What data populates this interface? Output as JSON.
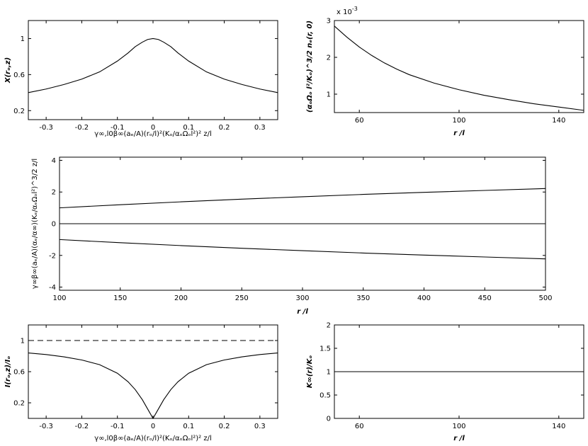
{
  "chart_data": [
    {
      "type": "line",
      "xlim": [
        -0.35,
        0.35
      ],
      "ylim": [
        0.1,
        1.2
      ],
      "xticks": [
        -0.3,
        -0.2,
        -0.1,
        0,
        0.1,
        0.2,
        0.3
      ],
      "xtick_labels": [
        "-0.3",
        "-0.2",
        "-0.1",
        "0",
        "0.1",
        "0.2",
        "0.3"
      ],
      "yticks": [
        0.2,
        0.6,
        1
      ],
      "ytick_labels": [
        "0.2",
        "0.6",
        "1"
      ],
      "xlabel": "γ∞,l0β∞(aₑ/A)(rₒ/l)²(Kₒ/αₒΩₒl²)² z/l",
      "ylabel": "X(rₒ,z)",
      "series": [
        {
          "x": [
            -0.35,
            -0.3,
            -0.25,
            -0.2,
            -0.15,
            -0.1,
            -0.07,
            -0.05,
            -0.03,
            -0.015,
            0,
            0.015,
            0.03,
            0.05,
            0.07,
            0.1,
            0.15,
            0.2,
            0.25,
            0.3,
            0.35
          ],
          "y": [
            0.4,
            0.44,
            0.49,
            0.55,
            0.63,
            0.75,
            0.84,
            0.91,
            0.96,
            0.99,
            1.0,
            0.99,
            0.96,
            0.91,
            0.84,
            0.75,
            0.63,
            0.55,
            0.49,
            0.44,
            0.4
          ]
        }
      ]
    },
    {
      "type": "line",
      "xlim": [
        50,
        150
      ],
      "ylim": [
        0.5,
        3
      ],
      "xticks": [
        60,
        100,
        140
      ],
      "xtick_labels": [
        "60",
        "100",
        "140"
      ],
      "yticks": [
        1,
        2,
        3
      ],
      "ytick_labels": [
        "1",
        "2",
        "3"
      ],
      "offset_text": "x 10",
      "offset_exp": "-3",
      "xlabel": "r /l",
      "ylabel": "(αₒΩₒ l²/Kₒ)^3/2 nₑ(r, 0)",
      "series": [
        {
          "x": [
            50,
            55,
            60,
            65,
            70,
            75,
            80,
            90,
            100,
            110,
            120,
            130,
            140,
            150
          ],
          "y": [
            2.85,
            2.55,
            2.28,
            2.05,
            1.85,
            1.68,
            1.53,
            1.3,
            1.12,
            0.97,
            0.85,
            0.74,
            0.65,
            0.56
          ]
        }
      ]
    },
    {
      "type": "line",
      "xlim": [
        100,
        500
      ],
      "ylim": [
        -4.2,
        4.2
      ],
      "xticks": [
        100,
        150,
        200,
        250,
        300,
        350,
        400,
        450,
        500
      ],
      "xtick_labels": [
        "100",
        "150",
        "200",
        "250",
        "300",
        "350",
        "400",
        "450",
        "500"
      ],
      "yticks": [
        -4,
        -2,
        0,
        2,
        4
      ],
      "ytick_labels": [
        "-4",
        "-2",
        "0",
        "2",
        "4"
      ],
      "xlabel": "r /l",
      "ylabel": "γ∞β∞(aₑ/A)(αₑ/α∞)(Kₑ/αₑΩₒl²)^3/2 z/l",
      "series": [
        {
          "x": [
            100,
            150,
            200,
            250,
            300,
            350,
            400,
            450,
            500
          ],
          "y": [
            1.0,
            1.2,
            1.38,
            1.55,
            1.7,
            1.85,
            1.98,
            2.1,
            2.22
          ]
        },
        {
          "x": [
            100,
            500
          ],
          "y": [
            0,
            0
          ]
        },
        {
          "x": [
            100,
            150,
            200,
            250,
            300,
            350,
            400,
            450,
            500
          ],
          "y": [
            -1.0,
            -1.2,
            -1.38,
            -1.55,
            -1.7,
            -1.85,
            -1.98,
            -2.1,
            -2.22
          ]
        }
      ]
    },
    {
      "type": "line",
      "xlim": [
        -0.35,
        0.35
      ],
      "ylim": [
        0,
        1.2
      ],
      "xticks": [
        -0.3,
        -0.2,
        -0.1,
        0,
        0.1,
        0.2,
        0.3
      ],
      "xtick_labels": [
        "-0.3",
        "-0.2",
        "-0.1",
        "0",
        "0.1",
        "0.2",
        "0.3"
      ],
      "yticks": [
        0.2,
        0.6,
        1
      ],
      "ytick_labels": [
        "0.2",
        "0.6",
        "1"
      ],
      "xlabel": "γ∞,l0β∞(aₑ/A)(rₒ/l)²(Kₒ/αₒΩₒl²)² z/l",
      "ylabel": "I(rₒ,z)/Iₒ",
      "series": [
        {
          "x": [
            -0.35,
            -0.3,
            -0.25,
            -0.2,
            -0.15,
            -0.1,
            -0.07,
            -0.05,
            -0.03,
            -0.015,
            0,
            0.015,
            0.03,
            0.05,
            0.07,
            0.1,
            0.15,
            0.2,
            0.25,
            0.3,
            0.35
          ],
          "y": [
            0.84,
            0.82,
            0.79,
            0.75,
            0.69,
            0.58,
            0.47,
            0.37,
            0.24,
            0.12,
            0.0,
            0.12,
            0.24,
            0.37,
            0.47,
            0.58,
            0.69,
            0.75,
            0.79,
            0.82,
            0.84
          ]
        },
        {
          "x": [
            -0.35,
            0.35
          ],
          "y": [
            1,
            1
          ],
          "dashed": true
        }
      ]
    },
    {
      "type": "line",
      "xlim": [
        50,
        150
      ],
      "ylim": [
        0,
        2
      ],
      "xticks": [
        60,
        100,
        140
      ],
      "xtick_labels": [
        "60",
        "100",
        "140"
      ],
      "yticks": [
        0,
        0.5,
        1,
        1.5,
        2
      ],
      "ytick_labels": [
        "0",
        "0.5",
        "1",
        "1.5",
        "2"
      ],
      "xlabel": "r /l",
      "ylabel": "K∞(r)/Kₒ",
      "series": [
        {
          "x": [
            50,
            150
          ],
          "y": [
            1,
            1
          ]
        }
      ]
    }
  ]
}
